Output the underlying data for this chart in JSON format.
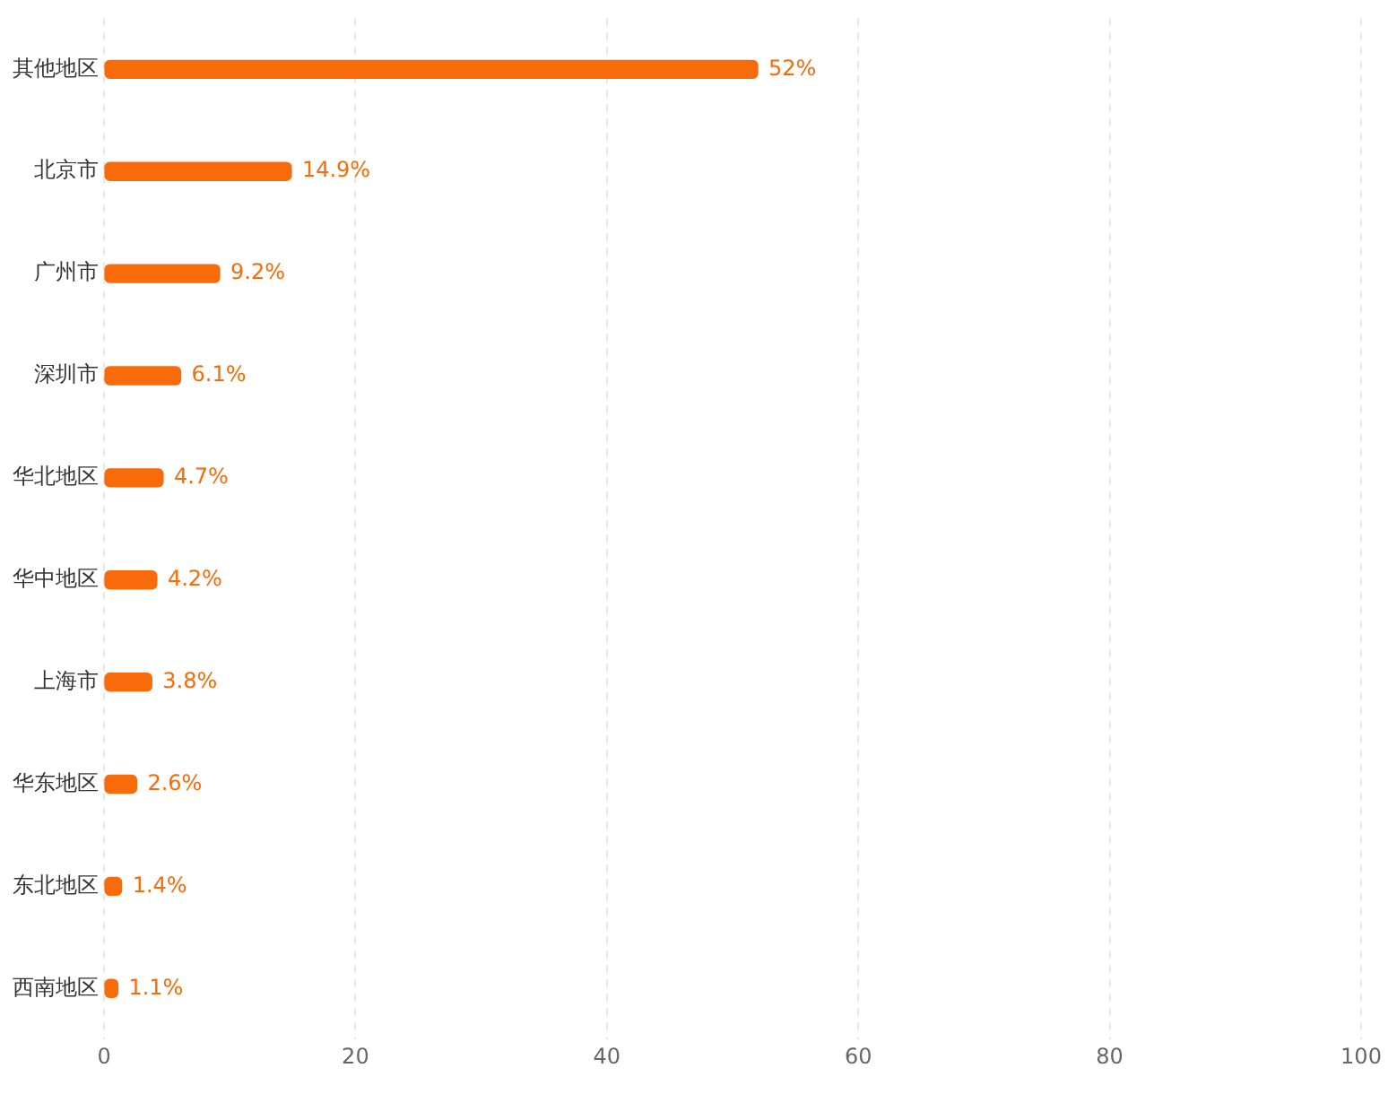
{
  "chart_data": {
    "type": "bar",
    "orientation": "horizontal",
    "categories": [
      "其他地区",
      "北京市",
      "广州市",
      "深圳市",
      "华北地区",
      "华中地区",
      "上海市",
      "华东地区",
      "东北地区",
      "西南地区"
    ],
    "values": [
      52,
      14.9,
      9.2,
      6.1,
      4.7,
      4.2,
      3.8,
      2.6,
      1.4,
      1.1
    ],
    "value_labels": [
      "52%",
      "14.9%",
      "9.2%",
      "6.1%",
      "4.7%",
      "4.2%",
      "3.8%",
      "2.6%",
      "1.4%",
      "1.1%"
    ],
    "color": "#f76b0a",
    "xlim": [
      0,
      100
    ],
    "xticks": [
      0,
      20,
      40,
      60,
      80,
      100
    ],
    "grid": "x",
    "legend": false
  }
}
